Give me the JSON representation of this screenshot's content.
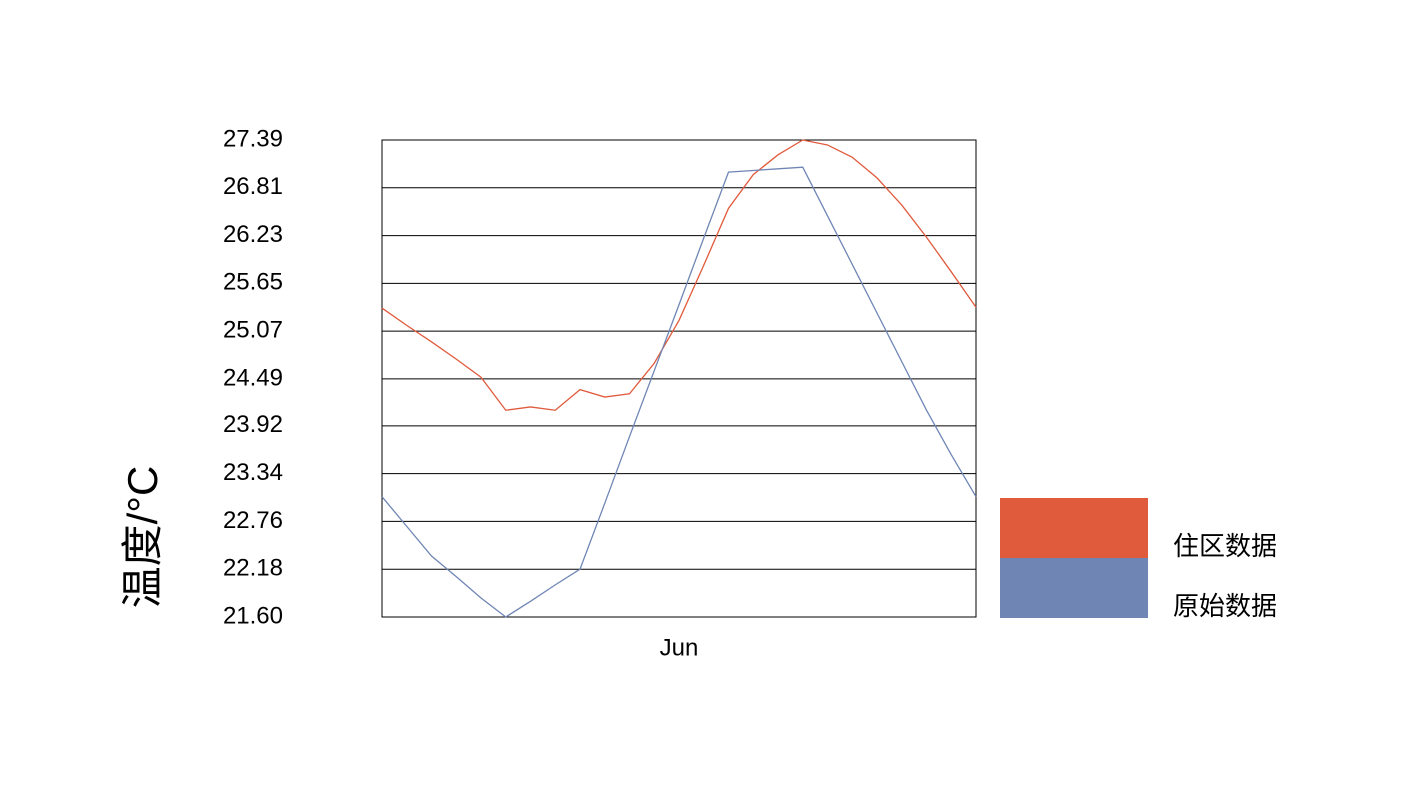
{
  "chart_data": {
    "type": "line",
    "y_label": "温度/°C",
    "categories": [
      null,
      null,
      null,
      null,
      null,
      null,
      null,
      null,
      null,
      null,
      null,
      null,
      "Jun",
      null,
      null,
      null,
      null,
      null,
      null,
      null,
      null,
      null,
      null,
      null,
      null
    ],
    "series": [
      {
        "name": "住区数据",
        "color": "#e05a3c",
        "values": [
          25.35,
          25.14,
          24.94,
          24.73,
          24.51,
          24.11,
          24.15,
          24.11,
          24.36,
          24.27,
          24.31,
          24.68,
          25.2,
          25.87,
          26.56,
          26.97,
          27.21,
          27.39,
          27.33,
          27.18,
          26.93,
          26.6,
          26.21,
          25.79,
          25.36
        ]
      },
      {
        "name": "原始数据",
        "color": "#6f86b5",
        "values": [
          23.06,
          22.7,
          22.34,
          22.09,
          21.83,
          21.6,
          21.79,
          21.99,
          22.18,
          22.98,
          23.79,
          24.59,
          25.39,
          26.2,
          27.0,
          27.02,
          27.04,
          27.06,
          26.47,
          25.88,
          25.29,
          24.7,
          24.11,
          23.57,
          23.06
        ]
      }
    ],
    "ylim": [
      21.6,
      27.39
    ],
    "yticks": [
      {
        "value": 21.6,
        "label": "21.60"
      },
      22.18,
      22.76,
      23.34,
      23.92,
      24.49,
      25.07,
      25.65,
      26.23,
      26.81,
      27.39
    ],
    "grid": true,
    "legend": "right"
  }
}
